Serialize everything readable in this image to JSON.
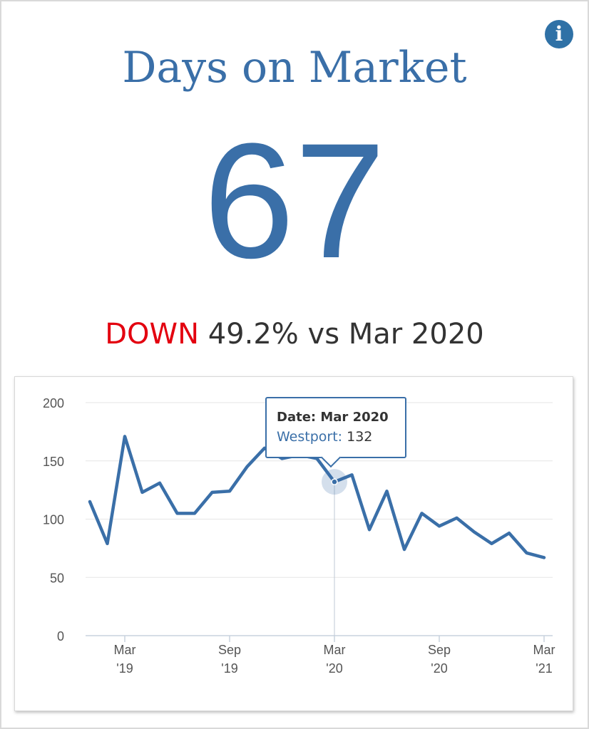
{
  "header": {
    "title": "Days on Market",
    "value": "67",
    "change_direction": "DOWN",
    "change_text": "49.2% vs Mar 2020",
    "info_icon": "info-icon"
  },
  "colors": {
    "accent": "#3a6fa8",
    "down": "#e3000f",
    "text": "#333333"
  },
  "tooltip": {
    "date_label": "Date: Mar 2020",
    "series_label": "Westport:",
    "series_value": "132"
  },
  "chart_data": {
    "type": "line",
    "title": "",
    "xlabel": "",
    "ylabel": "",
    "ylim": [
      0,
      200
    ],
    "yticks": [
      0,
      50,
      100,
      150,
      200
    ],
    "xticks": [
      {
        "line1": "Mar",
        "line2": "'19",
        "month_index": 2
      },
      {
        "line1": "Sep",
        "line2": "'19",
        "month_index": 8
      },
      {
        "line1": "Mar",
        "line2": "'20",
        "month_index": 14
      },
      {
        "line1": "Sep",
        "line2": "'20",
        "month_index": 20
      },
      {
        "line1": "Mar",
        "line2": "'21",
        "month_index": 26
      }
    ],
    "grid": true,
    "series": [
      {
        "name": "Westport",
        "color": "#3a6fa8",
        "x": [
          "Jan 2019",
          "Feb 2019",
          "Mar 2019",
          "Apr 2019",
          "May 2019",
          "Jun 2019",
          "Jul 2019",
          "Aug 2019",
          "Sep 2019",
          "Oct 2019",
          "Nov 2019",
          "Dec 2019",
          "Jan 2020",
          "Feb 2020",
          "Mar 2020",
          "Apr 2020",
          "May 2020",
          "Jun 2020",
          "Jul 2020",
          "Aug 2020",
          "Sep 2020",
          "Oct 2020",
          "Nov 2020",
          "Dec 2020",
          "Jan 2021",
          "Feb 2021",
          "Mar 2021"
        ],
        "values": [
          115,
          79,
          171,
          123,
          131,
          105,
          105,
          123,
          124,
          145,
          161,
          152,
          155,
          152,
          132,
          138,
          91,
          124,
          74,
          105,
          94,
          101,
          89,
          79,
          88,
          71,
          67
        ],
        "highlight_index": 14
      }
    ]
  }
}
